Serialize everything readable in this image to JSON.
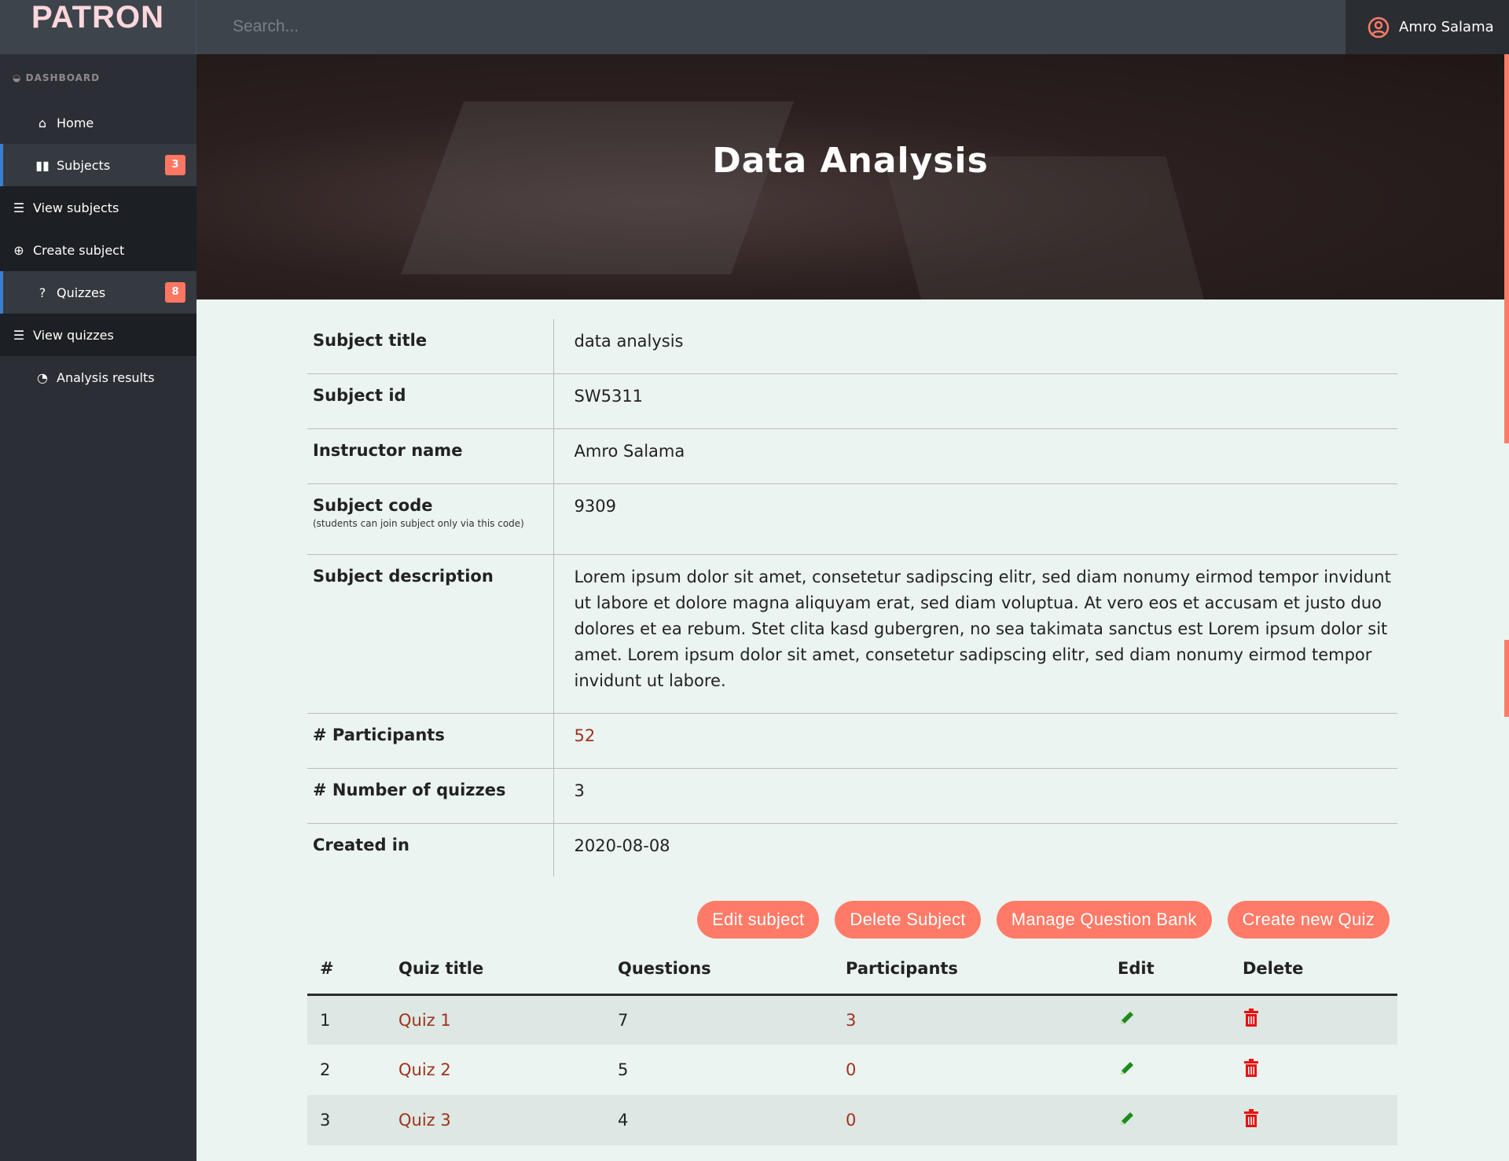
{
  "header": {
    "logo": "PATRON",
    "search_placeholder": "Search...",
    "user_name": "Amro Salama"
  },
  "sidebar": {
    "section": "DASHBOARD",
    "items": [
      {
        "label": "Home",
        "icon": "home-icon"
      },
      {
        "label": "Subjects",
        "icon": "book-icon",
        "badge": "3"
      },
      {
        "label": "View subjects",
        "icon": "list-icon"
      },
      {
        "label": "Create subject",
        "icon": "plus-circle-icon"
      },
      {
        "label": "Quizzes",
        "icon": "question-circle-icon",
        "badge": "8"
      },
      {
        "label": "View quizzes",
        "icon": "list-icon"
      },
      {
        "label": "Analysis results",
        "icon": "pie-chart-icon"
      }
    ]
  },
  "hero": {
    "title": "Data Analysis"
  },
  "info": {
    "subject_title": {
      "label": "Subject title",
      "value": "data analysis"
    },
    "subject_id": {
      "label": "Subject id",
      "value": "SW5311"
    },
    "instructor": {
      "label": "Instructor name",
      "value": "Amro Salama"
    },
    "code": {
      "label": "Subject code",
      "note": "(students can join subject only via this code)",
      "value": "9309"
    },
    "description": {
      "label": "Subject description",
      "value": "Lorem ipsum dolor sit amet, consetetur sadipscing elitr, sed diam nonumy eirmod tempor invidunt ut labore et dolore magna aliquyam erat, sed diam voluptua. At vero eos et accusam et justo duo dolores et ea rebum. Stet clita kasd gubergren, no sea takimata sanctus est Lorem ipsum dolor sit amet. Lorem ipsum dolor sit amet, consetetur sadipscing elitr, sed diam nonumy eirmod tempor invidunt ut labore."
    },
    "participants": {
      "label": "# Participants",
      "value": "52"
    },
    "quizzes": {
      "label": "# Number of quizzes",
      "value": "3"
    },
    "created": {
      "label": "Created in",
      "value": "2020-08-08"
    }
  },
  "actions": {
    "edit": "Edit subject",
    "delete": "Delete Subject",
    "bank": "Manage Question Bank",
    "create": "Create new Quiz"
  },
  "quiz_table": {
    "headers": [
      "#",
      "Quiz title",
      "Questions",
      "Participants",
      "Edit",
      "Delete"
    ],
    "rows": [
      {
        "n": "1",
        "title": "Quiz 1",
        "questions": "7",
        "participants": "3"
      },
      {
        "n": "2",
        "title": "Quiz 2",
        "questions": "5",
        "participants": "0"
      },
      {
        "n": "3",
        "title": "Quiz 3",
        "questions": "4",
        "participants": "0"
      }
    ]
  },
  "colors": {
    "accent": "#ff7b68",
    "link": "#a0321e",
    "edit_icon": "#1e8a1e",
    "delete_icon": "#e81010"
  }
}
